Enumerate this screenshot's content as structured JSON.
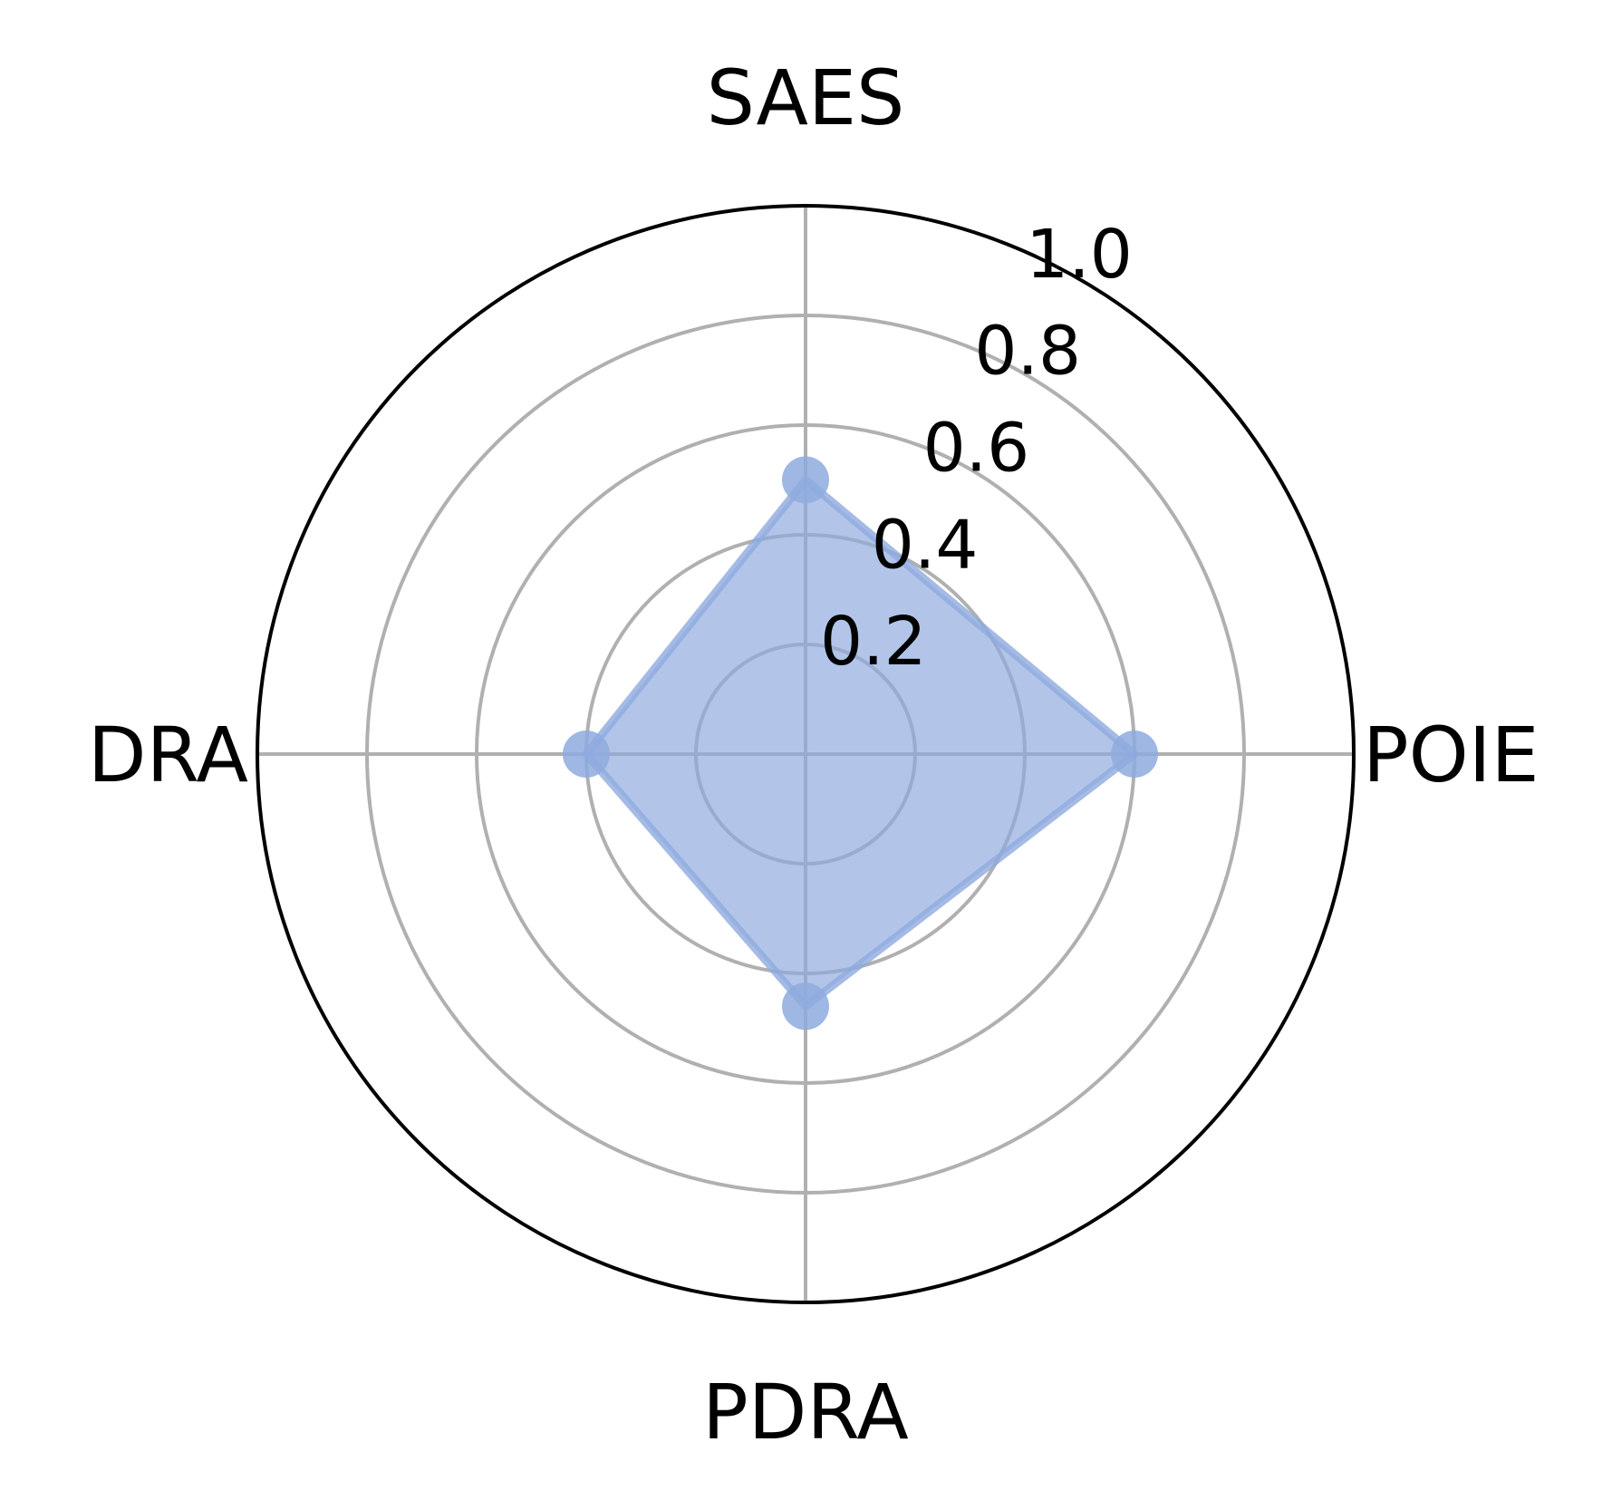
{
  "chart_data": {
    "type": "radar",
    "categories": [
      "SAES",
      "POIE",
      "PDRA",
      "DRA"
    ],
    "series": [
      {
        "values": [
          0.5,
          0.6,
          0.46,
          0.4
        ]
      }
    ],
    "rlim": [
      0,
      1.0
    ],
    "rticks": [
      "0.2",
      "0.4",
      "0.6",
      "0.8",
      "1.0"
    ],
    "grid": true,
    "colors": {
      "series": "#8eaade",
      "grid": "#b0b0b0",
      "frame": "#000000"
    }
  }
}
